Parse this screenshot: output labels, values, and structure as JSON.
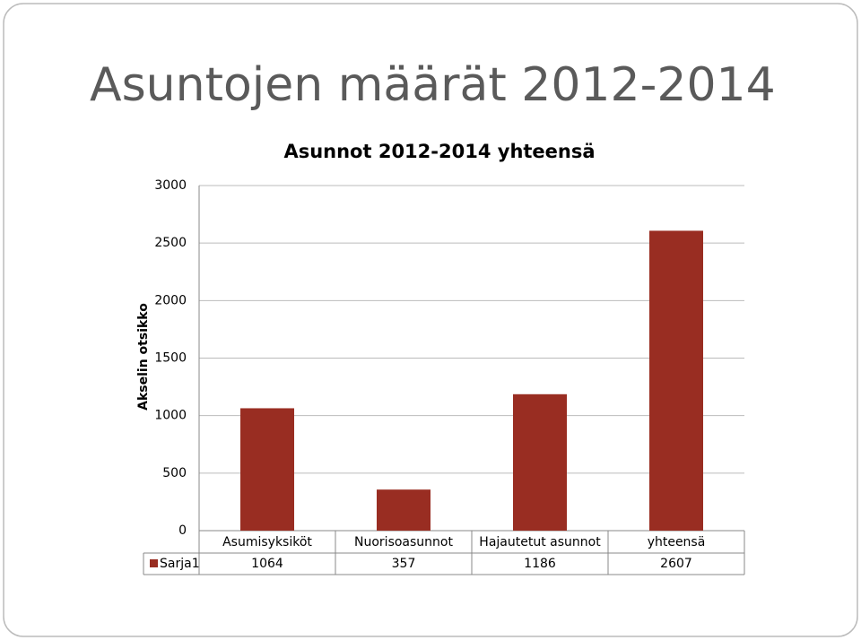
{
  "slide": {
    "title": "Asuntojen määrät 2012-2014"
  },
  "chart_data": {
    "type": "bar",
    "title": "Asunnot 2012-2014 yhteensä",
    "y_label": "Akselin otsikko",
    "categories": [
      "Asumisyksiköt",
      "Nuorisoasunnot",
      "Hajautetut asunnot",
      "yhteensä"
    ],
    "series": [
      {
        "name": "Sarja1",
        "color": "#992d22",
        "values": [
          1064,
          357,
          1186,
          2607
        ]
      }
    ],
    "ylim": [
      0,
      3000
    ],
    "yticks": [
      0,
      500,
      1000,
      1500,
      2000,
      2500,
      3000
    ],
    "grid": true
  }
}
